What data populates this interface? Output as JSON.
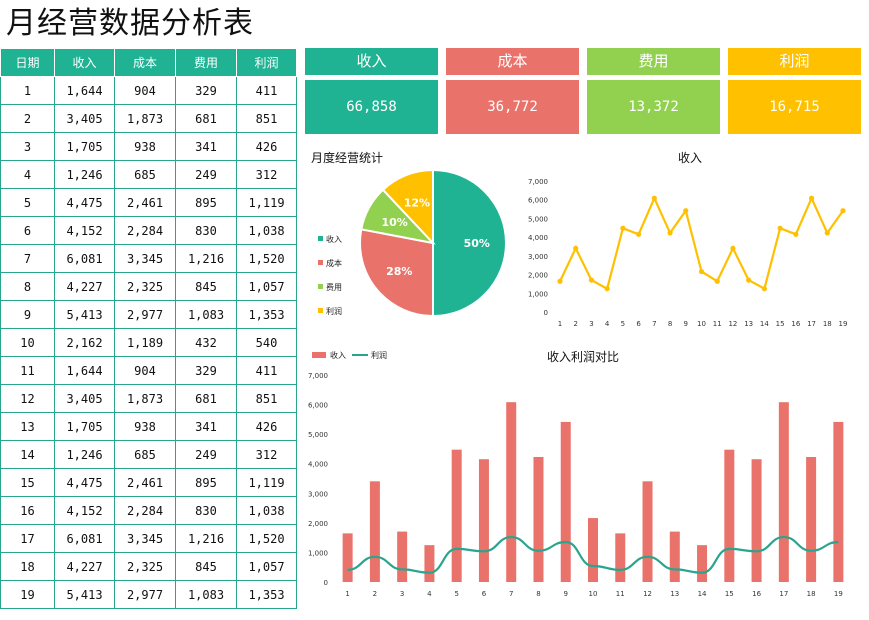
{
  "title": "月经营数据分析表",
  "table": {
    "headers": [
      "日期",
      "收入",
      "成本",
      "费用",
      "利润"
    ],
    "rows": [
      [
        "1",
        "1,644",
        "904",
        "329",
        "411"
      ],
      [
        "2",
        "3,405",
        "1,873",
        "681",
        "851"
      ],
      [
        "3",
        "1,705",
        "938",
        "341",
        "426"
      ],
      [
        "4",
        "1,246",
        "685",
        "249",
        "312"
      ],
      [
        "5",
        "4,475",
        "2,461",
        "895",
        "1,119"
      ],
      [
        "6",
        "4,152",
        "2,284",
        "830",
        "1,038"
      ],
      [
        "7",
        "6,081",
        "3,345",
        "1,216",
        "1,520"
      ],
      [
        "8",
        "4,227",
        "2,325",
        "845",
        "1,057"
      ],
      [
        "9",
        "5,413",
        "2,977",
        "1,083",
        "1,353"
      ],
      [
        "10",
        "2,162",
        "1,189",
        "432",
        "540"
      ],
      [
        "11",
        "1,644",
        "904",
        "329",
        "411"
      ],
      [
        "12",
        "3,405",
        "1,873",
        "681",
        "851"
      ],
      [
        "13",
        "1,705",
        "938",
        "341",
        "426"
      ],
      [
        "14",
        "1,246",
        "685",
        "249",
        "312"
      ],
      [
        "15",
        "4,475",
        "2,461",
        "895",
        "1,119"
      ],
      [
        "16",
        "4,152",
        "2,284",
        "830",
        "1,038"
      ],
      [
        "17",
        "6,081",
        "3,345",
        "1,216",
        "1,520"
      ],
      [
        "18",
        "4,227",
        "2,325",
        "845",
        "1,057"
      ],
      [
        "19",
        "5,413",
        "2,977",
        "1,083",
        "1,353"
      ]
    ]
  },
  "kpis": [
    {
      "label": "收入",
      "value": "66,858",
      "color": "#1fb394"
    },
    {
      "label": "成本",
      "value": "36,772",
      "color": "#e9736a"
    },
    {
      "label": "费用",
      "value": "13,372",
      "color": "#92d050"
    },
    {
      "label": "利润",
      "value": "16,715",
      "color": "#ffc000"
    }
  ],
  "chart_data": [
    {
      "type": "pie",
      "title": "月度经营统计",
      "categories": [
        "收入",
        "成本",
        "费用",
        "利润"
      ],
      "values": [
        50,
        28,
        10,
        12
      ],
      "labels": [
        "50%",
        "28%",
        "10%",
        "12%"
      ],
      "colors": [
        "#1fb394",
        "#e9736a",
        "#92d050",
        "#ffc000"
      ],
      "legend": "left"
    },
    {
      "type": "line",
      "title": "收入",
      "x": [
        "1",
        "2",
        "3",
        "4",
        "5",
        "6",
        "7",
        "8",
        "9",
        "10",
        "11",
        "12",
        "13",
        "14",
        "15",
        "16",
        "17",
        "18",
        "19"
      ],
      "values": [
        1644,
        3405,
        1705,
        1246,
        4475,
        4152,
        6081,
        4227,
        5413,
        2162,
        1644,
        3405,
        1705,
        1246,
        4475,
        4152,
        6081,
        4227,
        5413
      ],
      "yticks": [
        "0",
        "1,000",
        "2,000",
        "3,000",
        "4,000",
        "5,000",
        "6,000",
        "7,000"
      ],
      "ylim": [
        0,
        7000
      ],
      "color": "#ffc000"
    },
    {
      "type": "bar",
      "title": "收入利润对比",
      "x": [
        "1",
        "2",
        "3",
        "4",
        "5",
        "6",
        "7",
        "8",
        "9",
        "10",
        "11",
        "12",
        "13",
        "14",
        "15",
        "16",
        "17",
        "18",
        "19"
      ],
      "series": [
        {
          "name": "收入",
          "type": "bar",
          "color": "#e9736a",
          "values": [
            1644,
            3405,
            1705,
            1246,
            4475,
            4152,
            6081,
            4227,
            5413,
            2162,
            1644,
            3405,
            1705,
            1246,
            4475,
            4152,
            6081,
            4227,
            5413
          ]
        },
        {
          "name": "利润",
          "type": "line",
          "color": "#2aa58d",
          "values": [
            411,
            851,
            426,
            312,
            1119,
            1038,
            1520,
            1057,
            1353,
            540,
            411,
            851,
            426,
            312,
            1119,
            1038,
            1520,
            1057,
            1353
          ]
        }
      ],
      "yticks": [
        "0",
        "1,000",
        "2,000",
        "3,000",
        "4,000",
        "5,000",
        "6,000",
        "7,000"
      ],
      "ylim": [
        0,
        7000
      ],
      "legend": "top-left"
    }
  ]
}
